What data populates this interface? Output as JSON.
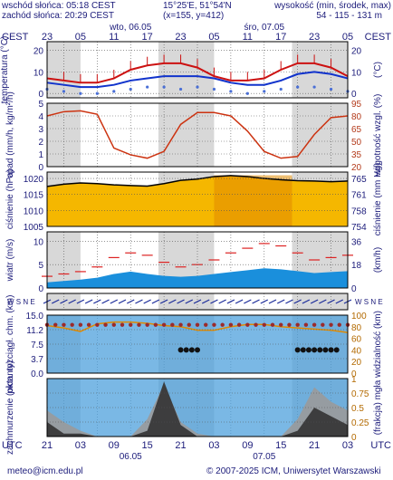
{
  "header": {
    "sunrise": "wschód słońca: 05:18 CEST",
    "sunset": "zachód słońca: 20:29 CEST",
    "coords": "15°25'E, 51°54'N",
    "grid": "(x=155, y=412)",
    "elev_label": "wysokość (min, środek, max)",
    "elev_values": "54 - 115 - 131 m"
  },
  "time_axis": {
    "tz_left": "CEST",
    "tz_right": "CEST",
    "top_hours": [
      "23",
      "05",
      "11",
      "17",
      "23",
      "05",
      "11",
      "17",
      "23",
      "05"
    ],
    "top_dates": [
      "wto, 06.05",
      "śro, 07.05"
    ],
    "bottom_tz_left": "UTC",
    "bottom_tz_right": "UTC",
    "bottom_hours": [
      "21",
      "03",
      "09",
      "15",
      "21",
      "03",
      "09",
      "15",
      "21",
      "03"
    ],
    "bottom_dates": [
      "06.05",
      "07.05"
    ]
  },
  "footer": {
    "email": "meteo@icm.edu.pl",
    "copyright": "© 2007-2025 ICM, Uniwersytet Warszawski"
  },
  "colors": {
    "plot_bg": "#ffffff",
    "night_band": "#d8d8d8",
    "grid": "#555555",
    "text": "#1b1b7a",
    "temp_line": "#cc1111",
    "dew_line": "#1133cc",
    "humidity_line": "#cc3311",
    "pressure_fill_light": "#f5b700",
    "pressure_fill_dark": "#e08a00",
    "wind_fill": "#1a8fdc",
    "cloud_bg": "#4ea0dc"
  },
  "chart_data": [
    {
      "type": "line",
      "panel": "temperatura",
      "ylabel_left": "temperatura (°C)",
      "ylabel_right": "(°C)",
      "ylim": [
        -2,
        24
      ],
      "yticks_left": [
        "0",
        "10",
        "20"
      ],
      "yticks_right": [
        "0",
        "10",
        "20"
      ],
      "grid": true,
      "x": [
        0,
        3,
        6,
        9,
        12,
        15,
        18,
        21,
        24,
        27,
        30,
        33,
        36,
        39,
        42,
        45,
        48,
        51,
        54
      ],
      "series": [
        {
          "values": [
            7,
            6,
            5,
            5,
            7,
            11,
            13,
            14,
            14,
            12,
            8,
            6,
            6,
            7,
            11,
            14,
            14,
            12,
            8
          ]
        },
        {
          "values": [
            5,
            4,
            3,
            3,
            4,
            6,
            7,
            8,
            8,
            8,
            7,
            5,
            4,
            4,
            6,
            9,
            10,
            9,
            7
          ]
        },
        {
          "values": [
            2,
            1,
            0,
            0,
            1,
            2,
            3,
            3,
            2,
            3,
            2,
            1,
            0,
            1,
            2,
            3,
            3,
            2,
            1
          ]
        }
      ]
    },
    {
      "type": "line",
      "panel": "opad",
      "ylabel_left": "opad (mm/h, kg/m²/h)",
      "ylabel_right": "wilgotność wzgl. (%)",
      "ylim_left": [
        0,
        5
      ],
      "ylim_right": [
        20,
        95
      ],
      "yticks_left": [
        "0",
        "1",
        "2",
        "3",
        "4",
        "5"
      ],
      "yticks_right": [
        "20",
        "35",
        "50",
        "65",
        "80",
        "95"
      ],
      "grid": true,
      "x": [
        0,
        3,
        6,
        9,
        12,
        15,
        18,
        21,
        24,
        27,
        30,
        33,
        36,
        39,
        42,
        45,
        48,
        51,
        54
      ],
      "series": [
        {
          "name": "humidity",
          "values": [
            80,
            85,
            86,
            82,
            42,
            34,
            30,
            38,
            70,
            84,
            84,
            80,
            62,
            38,
            30,
            32,
            58,
            78,
            80
          ]
        }
      ]
    },
    {
      "type": "area",
      "panel": "ciśnienie",
      "ylabel_left": "ciśnienie (hPa)",
      "ylabel_right": "ciśnienie (mm Hg)",
      "ylim_left": [
        1005,
        1022
      ],
      "yticks_left": [
        "1005",
        "1010",
        "1015",
        "1020"
      ],
      "yticks_right": [
        "754",
        "758",
        "761",
        "765"
      ],
      "grid": true,
      "x": [
        0,
        3,
        6,
        9,
        12,
        15,
        18,
        21,
        24,
        27,
        30,
        33,
        36,
        39,
        42,
        45,
        48,
        51,
        54
      ],
      "series": [
        {
          "values": [
            1017.5,
            1018.2,
            1018.6,
            1018.4,
            1018.0,
            1017.8,
            1017.6,
            1018.4,
            1019.4,
            1019.8,
            1020.6,
            1020.9,
            1020.6,
            1020.0,
            1019.6,
            1019.3,
            1019.2,
            1019.0,
            1019.2
          ]
        }
      ]
    },
    {
      "type": "area",
      "panel": "wiatr",
      "ylabel_left": "wiatr (m/s)",
      "ylabel_right": "(km/h)",
      "ylim_left": [
        0,
        12
      ],
      "yticks_left": [
        "0",
        "5",
        "10"
      ],
      "yticks_right": [
        "0",
        "18",
        "36"
      ],
      "grid": true,
      "x": [
        0,
        3,
        6,
        9,
        12,
        15,
        18,
        21,
        24,
        27,
        30,
        33,
        36,
        39,
        42,
        45,
        48,
        51,
        54
      ],
      "series": [
        {
          "name": "wind",
          "values": [
            1.2,
            1.5,
            1.8,
            2.2,
            3.0,
            3.5,
            3.0,
            2.6,
            2.4,
            2.6,
            3.0,
            3.4,
            3.8,
            4.2,
            4.0,
            3.6,
            3.2,
            3.4,
            3.6
          ]
        },
        {
          "name": "gusts",
          "values": [
            2.5,
            3.0,
            3.5,
            4.5,
            6.5,
            7.5,
            7.0,
            5.5,
            4.5,
            5.0,
            6.0,
            7.5,
            8.5,
            9.5,
            9.0,
            7.5,
            6.0,
            6.5,
            7.0
          ]
        }
      ]
    },
    {
      "type": "scatter",
      "panel": "kierunek",
      "ylabel_left": "W S N E",
      "ylabel_right": "W S N E"
    },
    {
      "type": "scatter",
      "panel": "pion. rozciągł. chm.",
      "ylabel_left": "pion. rozciągł. chm. (km)",
      "ylabel_right": "widzialność (km)",
      "ylim_left": [
        0,
        15
      ],
      "yticks_left": [
        "0.0",
        "3.7",
        "7.5",
        "11.2",
        "15.0"
      ],
      "yticks_right": [
        "0",
        "20",
        "40",
        "60",
        "80",
        "100"
      ],
      "grid": true,
      "x": [
        0,
        3,
        6,
        9,
        12,
        15,
        18,
        21,
        24,
        27,
        30,
        33,
        36,
        39,
        42,
        45,
        48,
        51,
        54
      ],
      "series": [
        {
          "name": "visibility",
          "values": [
            82,
            78,
            72,
            85,
            88,
            88,
            86,
            82,
            80,
            74,
            74,
            80,
            84,
            84,
            80,
            78,
            76,
            74,
            70
          ]
        }
      ]
    },
    {
      "type": "area",
      "panel": "zachmurzenie",
      "ylabel_left": "zachmurzenie (oktanty)",
      "ylabel_right": "(frakcja) mgła",
      "ylim_right": [
        0,
        1
      ],
      "yticks_right": [
        "0",
        "0.25",
        "0.5",
        "0.75",
        "1"
      ],
      "grid": true,
      "x": [
        0,
        3,
        6,
        9,
        12,
        15,
        18,
        21,
        24,
        27,
        30,
        33,
        36,
        39,
        42,
        45,
        48,
        51,
        54
      ],
      "series": [
        {
          "name": "low",
          "values": [
            0.25,
            0.05,
            0.05,
            0.0,
            0.0,
            0.0,
            0.1,
            0.95,
            0.2,
            0.0,
            0.0,
            0.0,
            0.0,
            0.0,
            0.0,
            0.1,
            0.5,
            0.35,
            0.2
          ]
        },
        {
          "name": "mid",
          "values": [
            0.45,
            0.25,
            0.1,
            0.0,
            0.0,
            0.0,
            0.3,
            0.9,
            0.25,
            0.05,
            0.0,
            0.0,
            0.0,
            0.0,
            0.0,
            0.3,
            0.85,
            0.6,
            0.45
          ]
        }
      ]
    }
  ]
}
